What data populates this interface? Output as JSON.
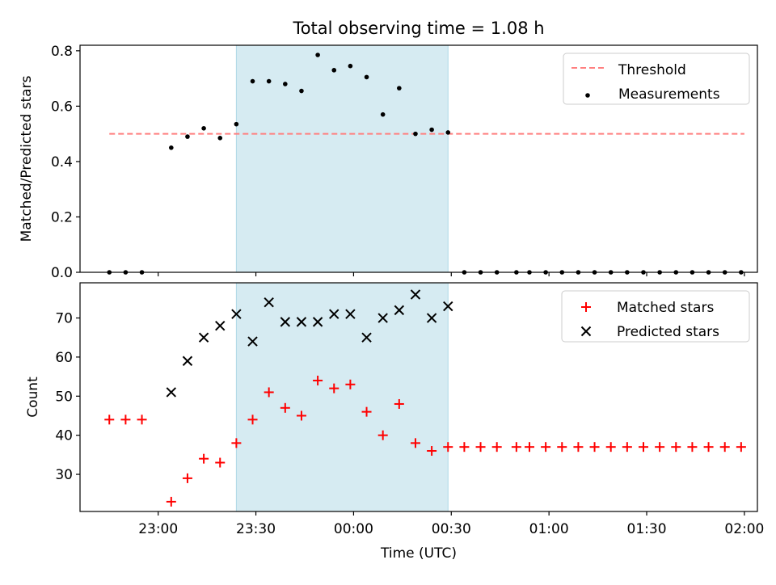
{
  "title": "Total observing time = 1.08 h",
  "xlabel": "Time (UTC)",
  "x_ticks": [
    "23:00",
    "23:30",
    "00:00",
    "00:30",
    "01:00",
    "01:30",
    "02:00"
  ],
  "shaded_interval": {
    "start": "23:24",
    "end": "00:29",
    "color": "#add8e6"
  },
  "chart_data": [
    {
      "type": "scatter",
      "ylabel": "Matched/Predicted stars",
      "ylim": [
        0,
        0.82
      ],
      "xlim": [
        "22:36",
        "02:04"
      ],
      "y_ticks": [
        "0.0",
        "0.2",
        "0.4",
        "0.6",
        "0.8"
      ],
      "y_tick_values": [
        0,
        0.2,
        0.4,
        0.6,
        0.8
      ],
      "legend_position": "top-right",
      "series": [
        {
          "name": "Threshold",
          "kind": "line",
          "color": "#ff7f7f",
          "linestyle": "dashed",
          "x": [
            "22:45",
            "02:00"
          ],
          "values": [
            0.5,
            0.5
          ]
        },
        {
          "name": "Measurements",
          "kind": "scatter",
          "color": "#000000",
          "marker": "dot",
          "x": [
            "22:45",
            "22:50",
            "22:55",
            "23:04",
            "23:09",
            "23:14",
            "23:19",
            "23:24",
            "23:29",
            "23:34",
            "23:39",
            "23:44",
            "23:49",
            "23:54",
            "23:59",
            "00:04",
            "00:09",
            "00:14",
            "00:19",
            "00:24",
            "00:29",
            "00:34",
            "00:39",
            "00:44",
            "00:50",
            "00:54",
            "00:59",
            "01:04",
            "01:09",
            "01:14",
            "01:19",
            "01:24",
            "01:29",
            "01:34",
            "01:39",
            "01:44",
            "01:49",
            "01:54",
            "01:59"
          ],
          "values": [
            0,
            0,
            0,
            0.45,
            0.49,
            0.52,
            0.485,
            0.535,
            0.69,
            0.69,
            0.68,
            0.655,
            0.785,
            0.73,
            0.745,
            0.705,
            0.57,
            0.665,
            0.5,
            0.515,
            0.505,
            0,
            0,
            0,
            0,
            0,
            0,
            0,
            0,
            0,
            0,
            0,
            0,
            0,
            0,
            0,
            0,
            0,
            0
          ]
        }
      ]
    },
    {
      "type": "scatter",
      "ylabel": "Count",
      "ylim": [
        20.5,
        79
      ],
      "xlim": [
        "22:36",
        "02:04"
      ],
      "y_ticks": [
        "30",
        "40",
        "50",
        "60",
        "70"
      ],
      "y_tick_values": [
        30,
        40,
        50,
        60,
        70
      ],
      "legend_position": "top-right",
      "series": [
        {
          "name": "Matched stars",
          "kind": "scatter",
          "color": "#ff0000",
          "marker": "plus",
          "x": [
            "22:45",
            "22:50",
            "22:55",
            "23:04",
            "23:09",
            "23:14",
            "23:19",
            "23:24",
            "23:29",
            "23:34",
            "23:39",
            "23:44",
            "23:49",
            "23:54",
            "23:59",
            "00:04",
            "00:09",
            "00:14",
            "00:19",
            "00:24",
            "00:29",
            "00:34",
            "00:39",
            "00:44",
            "00:50",
            "00:54",
            "00:59",
            "01:04",
            "01:09",
            "01:14",
            "01:19",
            "01:24",
            "01:29",
            "01:34",
            "01:39",
            "01:44",
            "01:49",
            "01:54",
            "01:59"
          ],
          "values": [
            44,
            44,
            44,
            23,
            29,
            34,
            33,
            38,
            44,
            51,
            47,
            45,
            54,
            52,
            53,
            46,
            40,
            48,
            38,
            36,
            37,
            37,
            37,
            37,
            37,
            37,
            37,
            37,
            37,
            37,
            37,
            37,
            37,
            37,
            37,
            37,
            37,
            37,
            37
          ]
        },
        {
          "name": "Predicted stars",
          "kind": "scatter",
          "color": "#000000",
          "marker": "x",
          "x": [
            "23:04",
            "23:09",
            "23:14",
            "23:19",
            "23:24",
            "23:29",
            "23:34",
            "23:39",
            "23:44",
            "23:49",
            "23:54",
            "23:59",
            "00:04",
            "00:09",
            "00:14",
            "00:19",
            "00:24",
            "00:29"
          ],
          "values": [
            51,
            59,
            65,
            68,
            71,
            64,
            74,
            69,
            69,
            69,
            71,
            71,
            65,
            70,
            72,
            76,
            70,
            73
          ]
        }
      ]
    }
  ]
}
